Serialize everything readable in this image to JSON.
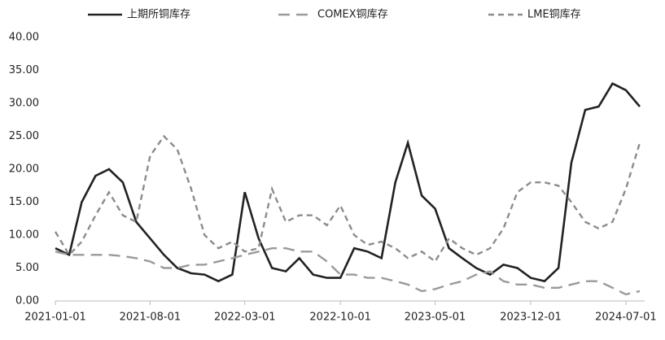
{
  "chart_data": {
    "type": "line",
    "x": [
      "2021-01-01",
      "2021-02-01",
      "2021-03-01",
      "2021-04-01",
      "2021-05-01",
      "2021-06-01",
      "2021-07-01",
      "2021-08-01",
      "2021-09-01",
      "2021-10-01",
      "2021-11-01",
      "2021-12-01",
      "2022-01-01",
      "2022-02-01",
      "2022-03-01",
      "2022-04-01",
      "2022-05-01",
      "2022-06-01",
      "2022-07-01",
      "2022-08-01",
      "2022-09-01",
      "2022-10-01",
      "2022-11-01",
      "2022-12-01",
      "2023-01-01",
      "2023-02-01",
      "2023-03-01",
      "2023-04-01",
      "2023-05-01",
      "2023-06-01",
      "2023-07-01",
      "2023-08-01",
      "2023-09-01",
      "2023-10-01",
      "2023-11-01",
      "2023-12-01",
      "2024-01-01",
      "2024-02-01",
      "2024-03-01",
      "2024-04-01",
      "2024-05-01",
      "2024-06-01",
      "2024-07-01",
      "2024-08-01"
    ],
    "series": [
      {
        "name": "上期所铜库存",
        "color": "#222222",
        "dash": "solid",
        "values": [
          8,
          7,
          15,
          19,
          20,
          18,
          12,
          9.5,
          7,
          5,
          4.2,
          4,
          3,
          4,
          16.5,
          9.5,
          5,
          4.5,
          6.5,
          4,
          3.5,
          3.5,
          8,
          7.5,
          6.5,
          18,
          24,
          16,
          14,
          8,
          6.5,
          5,
          4,
          5.5,
          5,
          3.5,
          3,
          5,
          21,
          29,
          29.5,
          33,
          32,
          29.5
        ]
      },
      {
        "name": "COMEX铜库存",
        "color": "#9a9a9a",
        "dash": "long",
        "values": [
          7.5,
          7,
          7,
          7,
          7,
          6.8,
          6.5,
          6,
          5,
          5,
          5.5,
          5.5,
          6,
          6.5,
          7,
          7.5,
          8,
          8,
          7.5,
          7.5,
          6,
          4,
          4,
          3.5,
          3.5,
          3,
          2.5,
          1.5,
          1.8,
          2.5,
          3,
          4,
          4.5,
          3,
          2.5,
          2.5,
          2,
          2,
          2.5,
          3,
          3,
          2,
          1,
          1.5
        ]
      },
      {
        "name": "LME铜库存",
        "color": "#8c8c8c",
        "dash": "short",
        "values": [
          10.5,
          7,
          9,
          13,
          16.5,
          13,
          12,
          22,
          25,
          23,
          17,
          10,
          8,
          9,
          7.5,
          8,
          17,
          12,
          13,
          13,
          11.5,
          14.5,
          10,
          8.5,
          9,
          8,
          6.5,
          7.5,
          6,
          9.5,
          8,
          7,
          8,
          11,
          16.5,
          18,
          18,
          17.5,
          15,
          12,
          11,
          12,
          17,
          24
        ]
      }
    ],
    "xticks": [
      "2021-01-01",
      "2021-08-01",
      "2022-03-01",
      "2022-10-01",
      "2023-05-01",
      "2023-12-01",
      "2024-07-01"
    ],
    "xlim": [
      "2021-01-01",
      "2024-08-12"
    ],
    "ylim": [
      0,
      40
    ],
    "yticks": [
      {
        "value": 0,
        "label": "0.00"
      },
      {
        "value": 5,
        "label": "5.00"
      },
      {
        "value": 10,
        "label": "10.00"
      },
      {
        "value": 15,
        "label": "15.00"
      },
      {
        "value": 20,
        "label": "20.00"
      },
      {
        "value": 25,
        "label": "25.00"
      },
      {
        "value": 30,
        "label": "30.00"
      },
      {
        "value": 35,
        "label": "35.00"
      },
      {
        "value": 40,
        "label": "40.00"
      }
    ],
    "grid": false,
    "legend": "top"
  }
}
